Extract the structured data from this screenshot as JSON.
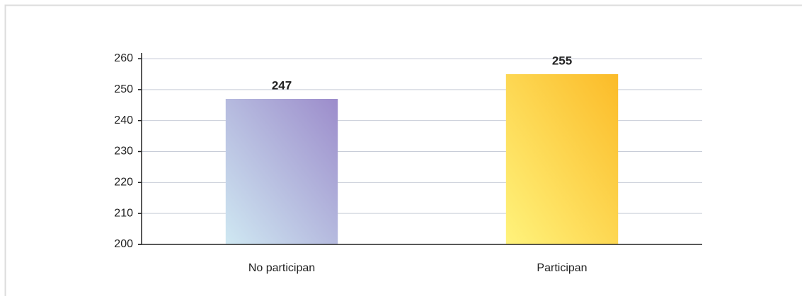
{
  "chart_data": {
    "type": "bar",
    "categories": [
      "No participan",
      "Participan"
    ],
    "values": [
      247,
      255
    ],
    "colors": [
      [
        "#cfe8f2",
        "#9c8ccb"
      ],
      [
        "#fff37c",
        "#fbbb28"
      ]
    ],
    "ylim": [
      200,
      260
    ],
    "yticks": [
      200,
      210,
      220,
      230,
      240,
      250,
      260
    ],
    "grid": true
  }
}
